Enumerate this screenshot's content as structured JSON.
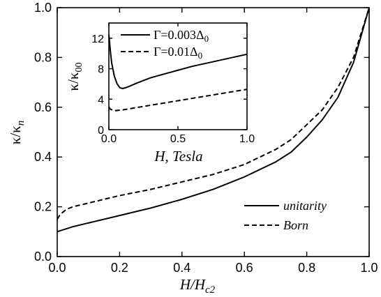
{
  "chart_data": [
    {
      "type": "line",
      "xlabel": "H/H",
      "xlabel_sub": "c2",
      "ylabel": "κ/κ",
      "ylabel_sub": "n",
      "xlim": [
        0.0,
        1.0
      ],
      "ylim": [
        0.0,
        1.0
      ],
      "x_ticks": [
        "0.0",
        "0.2",
        "0.4",
        "0.6",
        "0.8",
        "1.0"
      ],
      "y_ticks": [
        "0.0",
        "0.2",
        "0.4",
        "0.6",
        "0.8",
        "1.0"
      ],
      "legend_position": "bottom-right",
      "series": [
        {
          "name": "unitarity",
          "style": "solid",
          "x": [
            0.0,
            0.05,
            0.1,
            0.2,
            0.3,
            0.4,
            0.5,
            0.6,
            0.7,
            0.75,
            0.8,
            0.85,
            0.9,
            0.95,
            1.0
          ],
          "y": [
            0.1,
            0.12,
            0.135,
            0.165,
            0.195,
            0.23,
            0.27,
            0.32,
            0.38,
            0.42,
            0.48,
            0.55,
            0.64,
            0.78,
            1.0
          ]
        },
        {
          "name": "Born",
          "style": "dashed",
          "x": [
            0.0,
            0.01,
            0.03,
            0.05,
            0.1,
            0.2,
            0.3,
            0.4,
            0.5,
            0.6,
            0.7,
            0.75,
            0.8,
            0.85,
            0.9,
            0.95,
            1.0
          ],
          "y": [
            0.15,
            0.17,
            0.19,
            0.2,
            0.215,
            0.245,
            0.27,
            0.3,
            0.33,
            0.37,
            0.43,
            0.47,
            0.53,
            0.59,
            0.68,
            0.8,
            1.0
          ]
        }
      ]
    },
    {
      "type": "line",
      "inset": true,
      "xlabel": "H, Tesla",
      "ylabel": "κ/κ",
      "ylabel_sub": "00",
      "xlim": [
        0.0,
        1.0
      ],
      "ylim": [
        0,
        14
      ],
      "x_ticks": [
        "0.0",
        "0.5",
        "1.0"
      ],
      "y_ticks": [
        "0",
        "4",
        "8",
        "12"
      ],
      "legend_position": "top-right",
      "series": [
        {
          "name": "Γ=0.003Δ",
          "name_sub": "0",
          "style": "solid",
          "x": [
            0.0,
            0.01,
            0.02,
            0.04,
            0.06,
            0.08,
            0.1,
            0.12,
            0.15,
            0.2,
            0.3,
            0.4,
            0.5,
            0.6,
            0.7,
            0.8,
            0.9,
            1.0
          ],
          "y": [
            12.5,
            10.5,
            8.8,
            7.0,
            6.0,
            5.5,
            5.4,
            5.5,
            5.7,
            6.1,
            6.8,
            7.3,
            7.8,
            8.3,
            8.7,
            9.1,
            9.5,
            9.9
          ]
        },
        {
          "name": "Γ=0.01Δ",
          "name_sub": "0",
          "style": "dashed",
          "x": [
            0.0,
            0.01,
            0.03,
            0.05,
            0.1,
            0.15,
            0.2,
            0.3,
            0.4,
            0.5,
            0.6,
            0.7,
            0.8,
            0.9,
            1.0
          ],
          "y": [
            3.0,
            2.7,
            2.55,
            2.5,
            2.6,
            2.75,
            2.9,
            3.2,
            3.5,
            3.8,
            4.1,
            4.4,
            4.7,
            5.0,
            5.3
          ]
        }
      ]
    }
  ]
}
